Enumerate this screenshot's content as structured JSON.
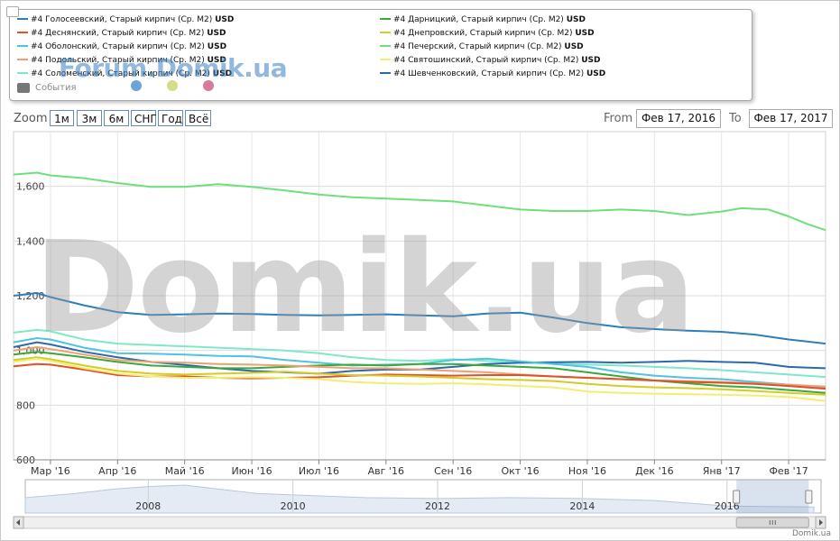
{
  "legend": {
    "items": [
      {
        "name": "#4 Голосеевский, Старый кирпич (Ср. M2)",
        "unit": "USD",
        "color": "#2c7fb8"
      },
      {
        "name": "#4 Деснянский, Старый кирпич (Ср. M2)",
        "unit": "USD",
        "color": "#e0502a"
      },
      {
        "name": "#4 Оболонский, Старый кирпич (Ср. M2)",
        "unit": "USD",
        "color": "#4fc3e0"
      },
      {
        "name": "#4 Подольский, Старый кирпич (Ср. M2)",
        "unit": "USD",
        "color": "#f0a070"
      },
      {
        "name": "#4 Соломенский, Старый кирпич (Ср. M2)",
        "unit": "USD",
        "color": "#7ee8c8"
      },
      {
        "name": "#4 Дарницкий, Старый кирпич (Ср. M2)",
        "unit": "USD",
        "color": "#3aa83a"
      },
      {
        "name": "#4 Днепровский, Старый кирпич (Ср. M2)",
        "unit": "USD",
        "color": "#d4cc20"
      },
      {
        "name": "#4 Печерский, Старый кирпич (Ср. M2)",
        "unit": "USD",
        "color": "#6ee07a"
      },
      {
        "name": "#4 Святошинский, Старый кирпич (Ср. M2)",
        "unit": "USD",
        "color": "#f2ee70"
      },
      {
        "name": "#4 Шевченковский, Старый кирпич (Ср. M2)",
        "unit": "USD",
        "color": "#2a6aaa"
      }
    ],
    "events_label": "События",
    "flag_colors": [
      "#6aa4d8",
      "#d6dc8a",
      "#d87a9a"
    ]
  },
  "watermark_small": "Forum.Domik.ua",
  "watermark_big": "Domik.ua",
  "zoom": {
    "label": "Zoom",
    "buttons": [
      "1м",
      "3м",
      "6м",
      "СНГ",
      "Год",
      "Всё"
    ]
  },
  "range": {
    "from_label": "From",
    "from_value": "Фев 17, 2016",
    "to_label": "To",
    "to_value": "Фев 17, 2017"
  },
  "navigator": {
    "years": [
      "2008",
      "2010",
      "2012",
      "2014",
      "2016"
    ]
  },
  "credit": "Domik.ua",
  "chart_data": {
    "type": "line",
    "y_ticks": [
      600,
      800,
      "1,000",
      "1,200",
      "1,400",
      "1,600"
    ],
    "ylim": [
      600,
      1800
    ],
    "x_ticks": [
      "Мар '16",
      "Апр '16",
      "Май '16",
      "Июн '16",
      "Июл '16",
      "Авг '16",
      "Сен '16",
      "Окт '16",
      "Ноя '16",
      "Дек '16",
      "Янв '17",
      "Фев '17"
    ],
    "x_months": [
      0,
      1,
      2,
      3,
      4,
      5,
      6,
      7,
      8,
      9,
      10,
      11
    ],
    "xlim": [
      -0.55,
      11.55
    ],
    "series": [
      {
        "name": "#4 Печерский, Старый кирпич (Ср. M2)",
        "color": "#6ee07a",
        "x": [
          -0.55,
          -0.2,
          0,
          0.5,
          1,
          1.5,
          2,
          2.5,
          3,
          3.5,
          4,
          4.5,
          5,
          5.5,
          6,
          6.5,
          7,
          7.5,
          8,
          8.5,
          9,
          9.5,
          10,
          10.3,
          10.7,
          11,
          11.3,
          11.55
        ],
        "y": [
          1643,
          1650,
          1640,
          1630,
          1612,
          1598,
          1598,
          1608,
          1598,
          1585,
          1570,
          1560,
          1555,
          1550,
          1545,
          1530,
          1515,
          1510,
          1510,
          1515,
          1510,
          1495,
          1508,
          1520,
          1515,
          1490,
          1460,
          1440
        ]
      },
      {
        "name": "#4 Голосеевский, Старый кирпич (Ср. M2)",
        "color": "#2c7fb8",
        "x": [
          -0.55,
          -0.2,
          0,
          0.5,
          1,
          1.5,
          2,
          2.5,
          3,
          3.5,
          4,
          4.5,
          5,
          5.5,
          6,
          6.5,
          7,
          7.5,
          8,
          8.5,
          9,
          9.5,
          10,
          10.5,
          11,
          11.55
        ],
        "y": [
          1200,
          1210,
          1195,
          1165,
          1140,
          1130,
          1132,
          1135,
          1133,
          1130,
          1128,
          1130,
          1132,
          1128,
          1125,
          1135,
          1138,
          1120,
          1100,
          1085,
          1078,
          1072,
          1068,
          1058,
          1040,
          1025
        ]
      },
      {
        "name": "#4 Соломенский, Старый кирпич (Ср. M2)",
        "color": "#7ee8c8",
        "x": [
          -0.55,
          -0.2,
          0,
          0.5,
          1,
          1.5,
          2,
          2.5,
          3,
          3.5,
          4,
          4.5,
          5,
          5.5,
          6,
          6.5,
          7,
          7.5,
          8,
          8.5,
          9,
          9.5,
          10,
          10.5,
          11,
          11.55
        ],
        "y": [
          1065,
          1075,
          1070,
          1040,
          1025,
          1020,
          1015,
          1010,
          1005,
          1000,
          990,
          975,
          965,
          962,
          968,
          962,
          955,
          952,
          948,
          945,
          940,
          935,
          928,
          920,
          912,
          903
        ]
      },
      {
        "name": "#4 Шевченковский, Старый кирпич (Ср. M2)",
        "color": "#2a6aaa",
        "x": [
          -0.55,
          -0.2,
          0,
          0.5,
          1,
          1.5,
          2,
          2.5,
          3,
          3.5,
          4,
          4.5,
          5,
          5.5,
          6,
          6.5,
          7,
          7.5,
          8,
          8.5,
          9,
          9.5,
          10,
          10.5,
          11,
          11.55
        ],
        "y": [
          1012,
          1030,
          1022,
          995,
          975,
          958,
          947,
          935,
          925,
          920,
          915,
          925,
          930,
          930,
          940,
          950,
          955,
          957,
          958,
          955,
          958,
          962,
          958,
          955,
          940,
          935
        ]
      },
      {
        "name": "#4 Оболонский, Старый кирпич (Ср. M2)",
        "color": "#4fc3e0",
        "x": [
          -0.55,
          -0.2,
          0,
          0.5,
          1,
          1.5,
          2,
          2.5,
          3,
          3.5,
          4,
          4.5,
          5,
          5.5,
          6,
          6.5,
          7,
          7.5,
          8,
          8.5,
          9,
          9.5,
          10,
          10.5,
          11,
          11.55
        ],
        "y": [
          1030,
          1045,
          1040,
          1010,
          990,
          988,
          985,
          980,
          978,
          965,
          955,
          945,
          948,
          950,
          965,
          970,
          960,
          950,
          940,
          920,
          908,
          900,
          895,
          885,
          875,
          865
        ]
      },
      {
        "name": "#4 Дарницкий, Старый кирпич (Ср. M2)",
        "color": "#3aa83a",
        "x": [
          -0.55,
          -0.2,
          0,
          0.5,
          1,
          1.5,
          2,
          2.5,
          3,
          3.5,
          4,
          4.5,
          5,
          5.5,
          6,
          6.5,
          7,
          7.5,
          8,
          8.5,
          9,
          9.5,
          10,
          10.5,
          11,
          11.55
        ],
        "y": [
          985,
          995,
          990,
          975,
          958,
          945,
          940,
          935,
          935,
          940,
          945,
          948,
          945,
          950,
          950,
          945,
          940,
          935,
          920,
          905,
          890,
          880,
          870,
          865,
          855,
          845
        ]
      },
      {
        "name": "#4 Подольский, Старый кирпич (Ср. M2)",
        "color": "#f0a070",
        "x": [
          -0.55,
          -0.2,
          0,
          0.5,
          1,
          1.5,
          2,
          2.5,
          3,
          3.5,
          4,
          4.5,
          5,
          5.5,
          6,
          6.5,
          7,
          7.5,
          8,
          8.5,
          9,
          9.5,
          10,
          10.5,
          11,
          11.55
        ],
        "y": [
          1000,
          1012,
          1005,
          985,
          965,
          958,
          955,
          950,
          948,
          945,
          940,
          935,
          935,
          930,
          925,
          920,
          912,
          905,
          900,
          895,
          890,
          888,
          885,
          880,
          875,
          868
        ]
      },
      {
        "name": "#4 Деснянский, Старый кирпич (Ср. M2)",
        "color": "#e0502a",
        "x": [
          -0.55,
          -0.2,
          0,
          0.5,
          1,
          1.5,
          2,
          2.5,
          3,
          3.5,
          4,
          4.5,
          5,
          5.5,
          6,
          6.5,
          7,
          7.5,
          8,
          8.5,
          9,
          9.5,
          10,
          10.5,
          11,
          11.55
        ],
        "y": [
          942,
          950,
          948,
          930,
          910,
          905,
          905,
          900,
          898,
          900,
          902,
          908,
          912,
          910,
          908,
          910,
          910,
          905,
          900,
          895,
          890,
          885,
          882,
          878,
          870,
          860
        ]
      },
      {
        "name": "#4 Днепровский, Старый кирпич (Ср. M2)",
        "color": "#d4cc20",
        "x": [
          -0.55,
          -0.2,
          0,
          0.5,
          1,
          1.5,
          2,
          2.5,
          3,
          3.5,
          4,
          4.5,
          5,
          5.5,
          6,
          6.5,
          7,
          7.5,
          8,
          8.5,
          9,
          9.5,
          10,
          10.5,
          11,
          11.55
        ],
        "y": [
          965,
          975,
          968,
          945,
          925,
          915,
          912,
          915,
          918,
          922,
          915,
          910,
          908,
          905,
          900,
          895,
          892,
          888,
          878,
          870,
          865,
          862,
          858,
          852,
          845,
          838
        ]
      },
      {
        "name": "#4 Святошинский, Старый кирпич (Ср. M2)",
        "color": "#f2ee70",
        "x": [
          -0.55,
          -0.2,
          0,
          0.5,
          1,
          1.5,
          2,
          2.5,
          3,
          3.5,
          4,
          4.5,
          5,
          5.5,
          6,
          6.5,
          7,
          7.5,
          8,
          8.5,
          9,
          9.5,
          10,
          10.5,
          11,
          11.55
        ],
        "y": [
          958,
          970,
          962,
          935,
          915,
          905,
          900,
          900,
          902,
          900,
          895,
          885,
          880,
          878,
          880,
          876,
          870,
          865,
          850,
          845,
          842,
          840,
          838,
          835,
          830,
          815
        ]
      }
    ],
    "navigator_series": {
      "x": [
        2006.3,
        2007,
        2007.5,
        2008,
        2008.5,
        2009,
        2009.5,
        2010,
        2011,
        2012,
        2013,
        2014,
        2015,
        2016,
        2017.2
      ],
      "y": [
        0.55,
        0.7,
        0.85,
        0.95,
        1.0,
        0.85,
        0.7,
        0.65,
        0.55,
        0.52,
        0.55,
        0.52,
        0.45,
        0.25,
        0.22
      ]
    },
    "navigator_years": [
      2008,
      2010,
      2012,
      2014,
      2016
    ],
    "navigator_xlim": [
      2006.3,
      2017.3
    ]
  }
}
